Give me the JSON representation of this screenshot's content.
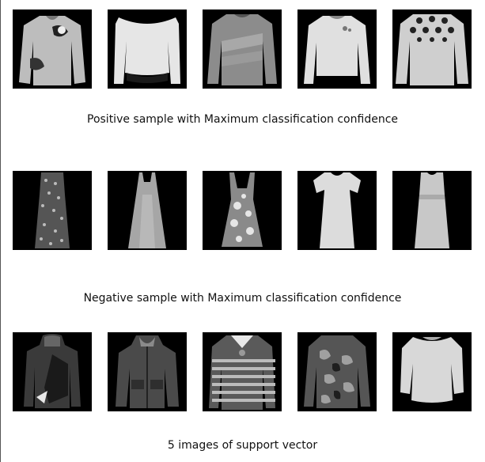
{
  "sections": [
    {
      "caption": "Positive sample with Maximum classification confidence",
      "images": [
        "pullover-print-icon",
        "long-sleeve-top-icon",
        "knit-pullover-icon",
        "plain-pullover-icon",
        "patterned-sweater-icon"
      ]
    },
    {
      "caption": "Negative sample with Maximum classification confidence",
      "images": [
        "sequin-dress-icon",
        "slip-dress-icon",
        "floral-dress-icon",
        "short-sleeve-dress-icon",
        "sleeveless-dress-icon"
      ]
    },
    {
      "caption": "5 images of support vector",
      "images": [
        "hooded-jacket-icon",
        "dark-hoodie-icon",
        "striped-sweater-icon",
        "camo-jacket-icon",
        "loose-top-icon"
      ]
    }
  ]
}
